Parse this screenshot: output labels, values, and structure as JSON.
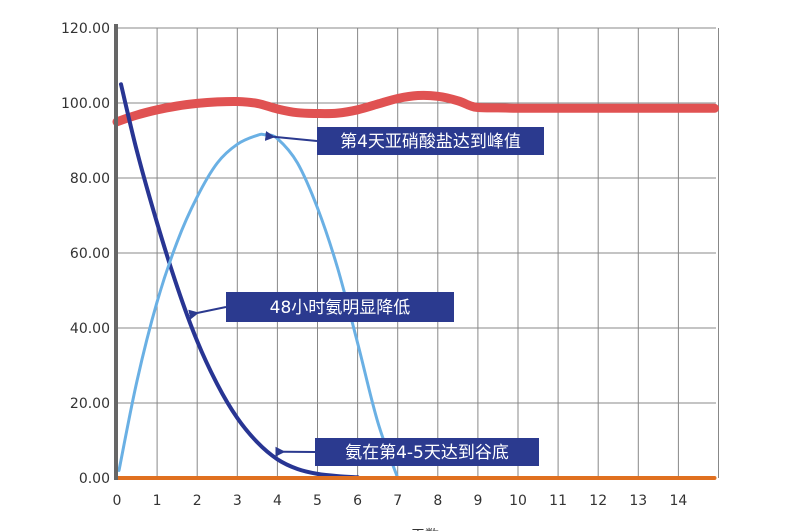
{
  "chart_data": {
    "type": "line",
    "title": "",
    "xlabel": "天数",
    "ylabel": "",
    "xlim": [
      0,
      15
    ],
    "ylim": [
      0,
      120
    ],
    "grid": true,
    "x_ticks": [
      "0",
      "1",
      "2",
      "3",
      "4",
      "5",
      "6",
      "7",
      "8",
      "9",
      "10",
      "11",
      "12",
      "13",
      "14"
    ],
    "y_ticks": [
      "0.00",
      "20.00",
      "40.00",
      "60.00",
      "80.00",
      "100.00",
      "120.00"
    ],
    "series": [
      {
        "color": "#e05252",
        "x": [
          0,
          0.5,
          1,
          1.5,
          2,
          2.5,
          3,
          3.5,
          4,
          4.5,
          5,
          5.5,
          6,
          6.5,
          7,
          7.5,
          8,
          8.5,
          8.8,
          9,
          9.5,
          10,
          11,
          12,
          13,
          14,
          14.9
        ],
        "y": [
          95,
          96.8,
          98.2,
          99.2,
          99.9,
          100.3,
          100.4,
          99.9,
          98.4,
          97.4,
          97.2,
          97.3,
          98.2,
          99.7,
          101.2,
          102,
          101.8,
          100.6,
          99.3,
          98.8,
          98.7,
          98.6,
          98.6,
          98.6,
          98.6,
          98.6,
          98.6
        ]
      },
      {
        "color": "#283593",
        "x": [
          0.1,
          0.5,
          1,
          1.5,
          2,
          2.5,
          3,
          3.5,
          4,
          4.5,
          5,
          5.5,
          6
        ],
        "y": [
          105,
          87,
          68,
          51,
          36.5,
          25,
          16,
          9.5,
          5,
          2.4,
          1.1,
          0.5,
          0.2
        ]
      },
      {
        "color": "#6ab0e4",
        "x": [
          0.05,
          0.5,
          1,
          1.5,
          2,
          2.5,
          3,
          3.5,
          3.7,
          4,
          4.5,
          5,
          5.5,
          6,
          6.5,
          7
        ],
        "y": [
          2,
          26,
          47,
          63,
          75,
          84,
          89,
          91.4,
          91.5,
          90.5,
          84,
          72,
          56,
          36,
          15,
          0
        ]
      },
      {
        "color": "#e07020",
        "x": [
          0,
          14.9
        ],
        "y": [
          0,
          0
        ]
      }
    ],
    "annotations": [
      {
        "text": "第4天亚硝酸盐达到峰值",
        "points_to": [
          3.75,
          91
        ]
      },
      {
        "text": "48小时氨明显降低",
        "points_to": [
          1.85,
          44
        ]
      },
      {
        "text": "氨在第4-5天达到谷底",
        "points_to": [
          4,
          7
        ]
      }
    ],
    "colors": {
      "axis": "#666666",
      "grid": "#888888",
      "annotation_bg": "#2b3a8f",
      "annotation_text": "#ffffff",
      "arrow": "#2b3a8f"
    }
  }
}
